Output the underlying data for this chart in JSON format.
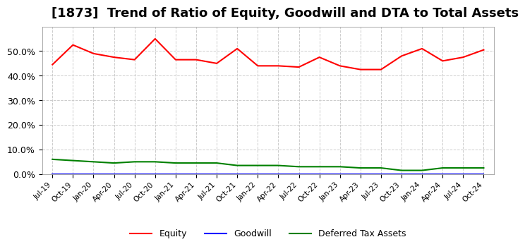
{
  "title": "[1873]  Trend of Ratio of Equity, Goodwill and DTA to Total Assets",
  "x_labels": [
    "Jul-19",
    "Oct-19",
    "Jan-20",
    "Apr-20",
    "Jul-20",
    "Oct-20",
    "Jan-21",
    "Apr-21",
    "Jul-21",
    "Oct-21",
    "Jan-22",
    "Apr-22",
    "Jul-22",
    "Oct-22",
    "Jan-23",
    "Apr-23",
    "Jul-23",
    "Oct-23",
    "Jan-24",
    "Apr-24",
    "Jul-24",
    "Oct-24"
  ],
  "equity": [
    44.5,
    52.5,
    49.0,
    47.5,
    46.5,
    55.0,
    46.5,
    46.5,
    45.0,
    51.0,
    44.0,
    44.0,
    43.5,
    47.5,
    44.0,
    42.5,
    42.5,
    48.0,
    51.0,
    46.0,
    47.5,
    50.5
  ],
  "goodwill": [
    0.0,
    0.0,
    0.0,
    0.0,
    0.0,
    0.0,
    0.0,
    0.0,
    0.0,
    0.0,
    0.0,
    0.0,
    0.0,
    0.0,
    0.0,
    0.0,
    0.0,
    0.0,
    0.0,
    0.0,
    0.0,
    0.0
  ],
  "dta": [
    6.0,
    5.5,
    5.0,
    4.5,
    5.0,
    5.0,
    4.5,
    4.5,
    4.5,
    3.5,
    3.5,
    3.5,
    3.0,
    3.0,
    3.0,
    2.5,
    2.5,
    1.5,
    1.5,
    2.5,
    2.5,
    2.5
  ],
  "equity_color": "#ff0000",
  "goodwill_color": "#0000ff",
  "dta_color": "#008000",
  "ylim": [
    0,
    60
  ],
  "yticks": [
    0,
    10,
    20,
    30,
    40,
    50
  ],
  "ytick_labels": [
    "0.0%",
    "10.0%",
    "20.0%",
    "30.0%",
    "40.0%",
    "50.0%"
  ],
  "background_color": "#ffffff",
  "plot_bg_color": "#ffffff",
  "grid_color": "#cccccc",
  "title_fontsize": 13,
  "legend_labels": [
    "Equity",
    "Goodwill",
    "Deferred Tax Assets"
  ]
}
